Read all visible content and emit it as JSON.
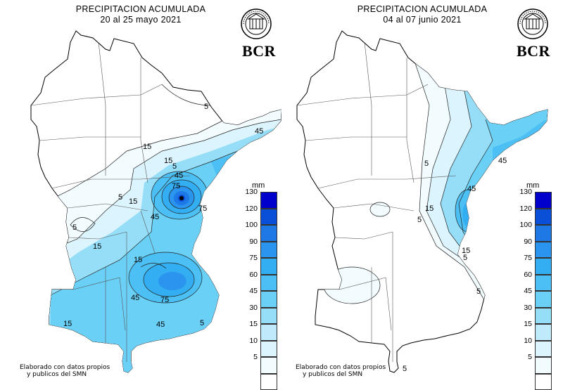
{
  "panels": [
    {
      "title": "PRECIPITACION ACUMULADA",
      "period": "20 al 25 mayo 2021",
      "logo_text": "BCR",
      "credit_line1": "Elaborado con datos propios",
      "credit_line2": "y publicos del SMN",
      "contour_labels": [
        "5",
        "15",
        "45",
        "75",
        "5",
        "15",
        "45",
        "75",
        "15",
        "5",
        "5",
        "15",
        "45",
        "75",
        "15",
        "45",
        "45",
        "15",
        "5"
      ]
    },
    {
      "title": "PRECIPITACION ACUMULADA",
      "period": "04 al 07 junio 2021",
      "logo_text": "BCR",
      "credit_line1": "Elaborado con datos propios",
      "credit_line2": "y publicos del SMN",
      "contour_labels": [
        "5",
        "15",
        "45",
        "45",
        "5",
        "15",
        "5",
        "5",
        "5"
      ]
    }
  ],
  "legend": {
    "unit": "mm",
    "ticks": [
      "130",
      "120",
      "100",
      "90",
      "75",
      "60",
      "45",
      "30",
      "15",
      "10",
      "5"
    ],
    "colors": [
      "#0000cc",
      "#0a4fd8",
      "#1e78e6",
      "#2a94ee",
      "#34aef2",
      "#4cc0f4",
      "#6ad0f6",
      "#96def8",
      "#bfeafb",
      "#dcf4fd",
      "#f2fbfe"
    ]
  }
}
